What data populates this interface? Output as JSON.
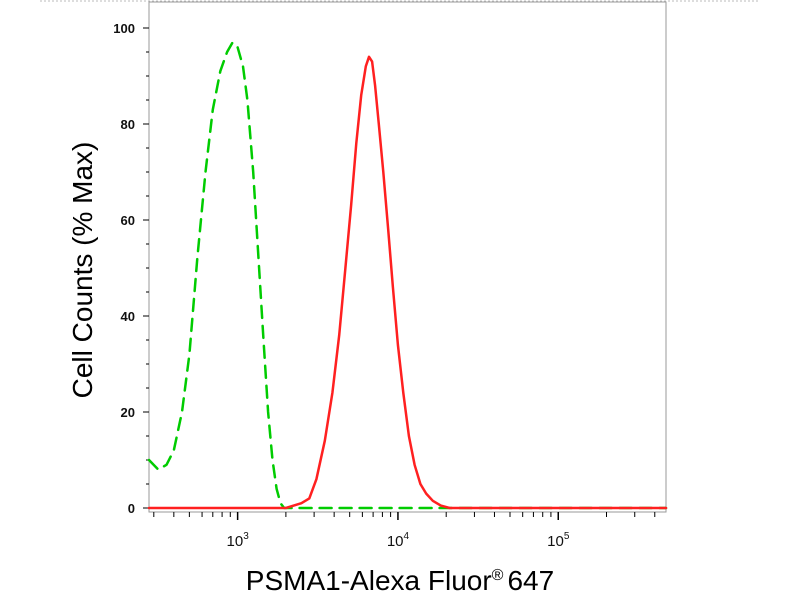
{
  "chart_data": {
    "type": "line",
    "xlabel": "PSMA1-Alexa Fluor",
    "xlabel_superscript": "®",
    "xlabel_suffix": "647",
    "ylabel": "Cell Counts (% Max)",
    "x_scale": "log",
    "xlim": [
      280,
      470000
    ],
    "ylim": [
      0,
      100
    ],
    "y_ticks": [
      "0",
      "20",
      "40",
      "60",
      "80",
      "100"
    ],
    "x_ticks": [
      {
        "value": 1000,
        "base": "10",
        "exp": "3"
      },
      {
        "value": 10000,
        "base": "10",
        "exp": "4"
      },
      {
        "value": 100000,
        "base": "10",
        "exp": "5"
      }
    ],
    "grid": false,
    "series": [
      {
        "color": "#00cc00",
        "style": "dashed",
        "x": [
          280,
          320,
          360,
          400,
          450,
          500,
          560,
          630,
          700,
          780,
          860,
          930,
          1000,
          1080,
          1150,
          1250,
          1350,
          1450,
          1550,
          1650,
          1750,
          1850,
          1950,
          2100,
          2500,
          5000,
          20000,
          100000,
          470000
        ],
        "y": [
          10,
          8,
          9,
          12,
          20,
          32,
          52,
          70,
          83,
          91,
          95,
          97,
          96,
          92,
          85,
          70,
          52,
          35,
          20,
          10,
          4,
          1,
          0,
          0,
          0,
          0,
          0,
          0,
          0
        ]
      },
      {
        "color": "#ff2020",
        "style": "solid",
        "x": [
          280,
          1000,
          2000,
          2500,
          2800,
          3100,
          3500,
          3900,
          4300,
          4700,
          5100,
          5500,
          5900,
          6300,
          6600,
          6900,
          7200,
          7600,
          8100,
          8700,
          9300,
          10000,
          10800,
          11700,
          12700,
          13800,
          15000,
          16500,
          18500,
          21000,
          25000,
          35000,
          100000,
          470000
        ],
        "y": [
          0,
          0,
          0,
          1,
          2,
          6,
          14,
          24,
          36,
          50,
          63,
          76,
          86,
          92,
          94,
          93,
          88,
          80,
          70,
          58,
          46,
          34,
          24,
          15,
          9,
          5,
          3,
          1.5,
          0.5,
          0,
          0,
          0,
          0,
          0
        ]
      }
    ]
  }
}
